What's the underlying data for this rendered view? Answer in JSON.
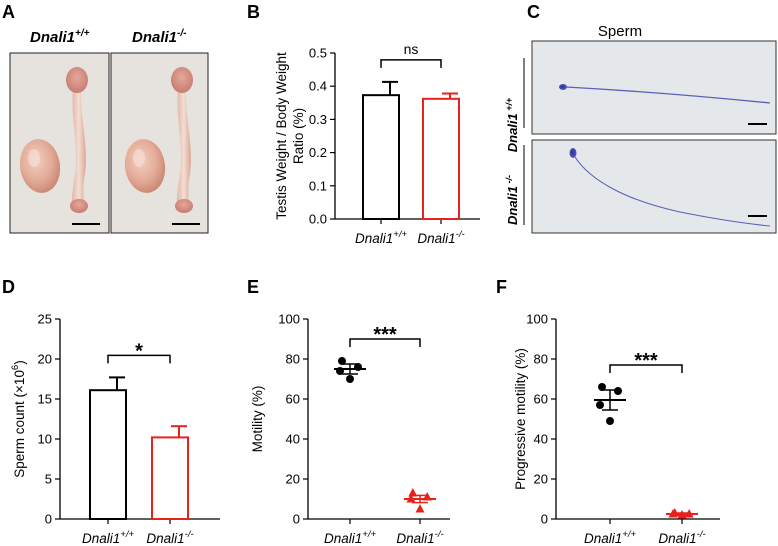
{
  "panel_letters": [
    "A",
    "B",
    "C",
    "D",
    "E",
    "F"
  ],
  "panelA": {
    "labels": {
      "wt": {
        "gene": "Dnali1",
        "sup": "+/+"
      },
      "ko": {
        "gene": "Dnali1",
        "sup": "-/-"
      }
    }
  },
  "panelC": {
    "title": "Sperm",
    "row_labels": [
      {
        "gene": "Dnali1",
        "sup": " +/+"
      },
      {
        "gene": "Dnali1",
        "sup": " -/-"
      }
    ]
  },
  "colors": {
    "wt": "#000000",
    "ko": "#e8211c",
    "stain": "#4b4fa6"
  },
  "chart_data": [
    {
      "panel": "B",
      "type": "bar",
      "categories": [
        {
          "gene": "Dnali1",
          "sup": "+/+"
        },
        {
          "gene": "Dnali1",
          "sup": "-/-"
        }
      ],
      "values": [
        0.373,
        0.362
      ],
      "errors": [
        0.04,
        0.016
      ],
      "ylabel": [
        "Testis Weight / Body Weight",
        "Ratio (%)"
      ],
      "ylim": [
        0,
        0.5
      ],
      "yticks": [
        "0.0",
        "0.1",
        "0.2",
        "0.3",
        "0.4",
        "0.5"
      ],
      "significance": "ns"
    },
    {
      "panel": "D",
      "type": "bar",
      "categories": [
        {
          "gene": "Dnali1",
          "sup": "+/+"
        },
        {
          "gene": "Dnali1",
          "sup": "-/-"
        }
      ],
      "values": [
        16.1,
        10.2
      ],
      "errors": [
        1.6,
        1.4
      ],
      "ylabel": {
        "main": "Sperm count (×10",
        "sup": "6",
        "end": ")"
      },
      "ylim": [
        0,
        25
      ],
      "yticks": [
        "0",
        "5",
        "10",
        "15",
        "20",
        "25"
      ],
      "significance": "*"
    },
    {
      "panel": "E",
      "type": "scatter",
      "categories": [
        {
          "gene": "Dnali1",
          "sup": "+/+"
        },
        {
          "gene": "Dnali1",
          "sup": "-/-"
        }
      ],
      "series": [
        {
          "name": "Dnali1+/+",
          "points": [
            79,
            76,
            74,
            70
          ],
          "mean": 75,
          "sem": 2.5
        },
        {
          "name": "Dnali1-/-",
          "points": [
            13,
            11,
            10,
            5
          ],
          "mean": 10,
          "sem": 1.8
        }
      ],
      "ylabel": "Motility (%)",
      "ylim": [
        0,
        100
      ],
      "yticks": [
        "0",
        "20",
        "40",
        "60",
        "80",
        "100"
      ],
      "significance": "***"
    },
    {
      "panel": "F",
      "type": "scatter",
      "categories": [
        {
          "gene": "Dnali1",
          "sup": "+/+"
        },
        {
          "gene": "Dnali1",
          "sup": "-/-"
        }
      ],
      "series": [
        {
          "name": "Dnali1+/+",
          "points": [
            66,
            64,
            57,
            49
          ],
          "mean": 59.5,
          "sem": 5
        },
        {
          "name": "Dnali1-/-",
          "points": [
            3,
            2.5,
            2.5,
            2
          ],
          "mean": 2.5,
          "sem": 0.5
        }
      ],
      "ylabel": "Progressive motility (%)",
      "ylim": [
        0,
        100
      ],
      "yticks": [
        "0",
        "20",
        "40",
        "60",
        "80",
        "100"
      ],
      "significance": "***"
    }
  ]
}
